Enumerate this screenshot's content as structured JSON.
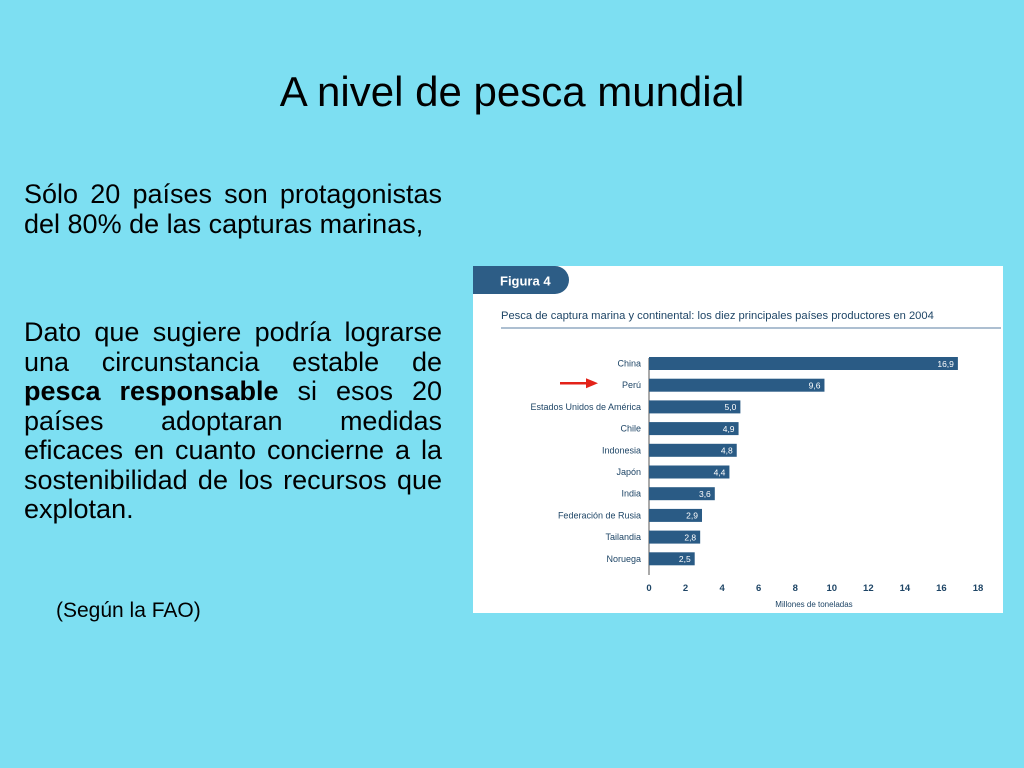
{
  "slide": {
    "title": "A nivel de pesca mundial",
    "para1": "Sólo 20 países son protagonistas del 80% de las capturas marinas,",
    "para2_before": "Dato que sugiere podría lograrse una circunstancia estable de ",
    "para2_bold": "pesca responsable",
    "para2_after": " si esos 20 países adoptaran medidas eficaces en cuanto concierne a la sostenibilidad de los recursos que explotan.",
    "source": "(Según la FAO)"
  },
  "chart_data": {
    "type": "bar",
    "orientation": "horizontal",
    "figure_label": "Figura 4",
    "title": "Pesca de captura marina y continental: los diez principales países productores en 2004",
    "xlabel": "Millones de toneladas",
    "ylabel": "",
    "xlim": [
      0,
      18
    ],
    "xticks": [
      0,
      2,
      4,
      6,
      8,
      10,
      12,
      14,
      16,
      18
    ],
    "categories": [
      "China",
      "Perú",
      "Estados Unidos de América",
      "Chile",
      "Indonesia",
      "Japón",
      "India",
      "Federación de Rusia",
      "Tailandia",
      "Noruega"
    ],
    "values": [
      16.9,
      9.6,
      5.0,
      4.9,
      4.8,
      4.4,
      3.6,
      2.9,
      2.8,
      2.5
    ],
    "value_labels": [
      "16,9",
      "9,6",
      "5,0",
      "4,9",
      "4,8",
      "4,4",
      "3,6",
      "2,9",
      "2,8",
      "2,5"
    ],
    "highlight": "Perú",
    "colors": {
      "bar": "#2a5b85",
      "accent": "#e32219",
      "text": "#1e4566",
      "tab": "#2d5d86"
    }
  }
}
